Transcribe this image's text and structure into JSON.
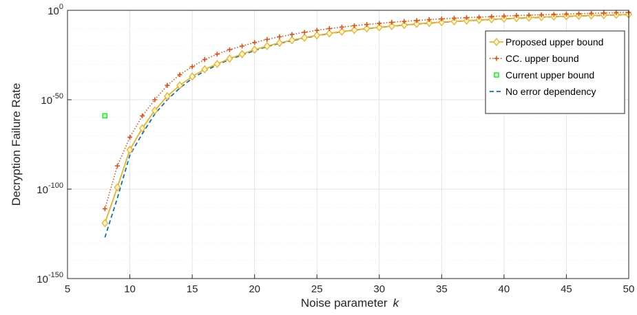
{
  "chart_data": {
    "type": "line",
    "xlabel": "Noise parameter",
    "xlabel_var": "k",
    "ylabel": "Decryption Failure Rate",
    "xlim": [
      5,
      50
    ],
    "ylim_log10": [
      -150,
      0
    ],
    "y_scale": "log",
    "grid": true,
    "legend_position": "top-right",
    "x_ticks": [
      "5",
      "10",
      "15",
      "20",
      "25",
      "30",
      "35",
      "40",
      "45",
      "50"
    ],
    "y_ticks": [
      {
        "base": "10",
        "exp": "0",
        "log10": 0
      },
      {
        "base": "10",
        "exp": "-50",
        "log10": -50
      },
      {
        "base": "10",
        "exp": "-100",
        "log10": -100
      },
      {
        "base": "10",
        "exp": "-150",
        "log10": -150
      }
    ],
    "series": [
      {
        "name": "Proposed upper bound",
        "color": "#EDB120",
        "style": "solid",
        "marker": "diamond",
        "x": [
          8,
          9,
          10,
          11,
          12,
          13,
          14,
          15,
          16,
          17,
          18,
          19,
          20,
          21,
          22,
          23,
          24,
          25,
          26,
          27,
          28,
          29,
          30,
          31,
          32,
          33,
          34,
          35,
          36,
          37,
          38,
          39,
          40,
          41,
          42,
          43,
          44,
          45,
          46,
          47,
          48,
          49,
          50
        ],
        "log10_y": [
          -119,
          -99,
          -78,
          -66,
          -56,
          -48,
          -42,
          -37,
          -33,
          -30,
          -27,
          -24.5,
          -22,
          -20,
          -18.2,
          -16.7,
          -15.3,
          -14,
          -12.9,
          -11.9,
          -11,
          -10.2,
          -9.5,
          -8.8,
          -8.2,
          -7.6,
          -7.1,
          -6.6,
          -6.2,
          -5.8,
          -5.4,
          -5,
          -4.7,
          -4.4,
          -4.1,
          -3.8,
          -3.5,
          -3.3,
          -3.1,
          -2.9,
          -2.7,
          -2.5,
          -2.3
        ]
      },
      {
        "name": "CC. upper bound",
        "color": "#D95319",
        "style": "dotted",
        "marker": "plus",
        "x": [
          8,
          9,
          10,
          11,
          12,
          13,
          14,
          15,
          16,
          17,
          18,
          19,
          20,
          21,
          22,
          23,
          24,
          25,
          26,
          27,
          28,
          29,
          30,
          31,
          32,
          33,
          34,
          35,
          36,
          37,
          38,
          39,
          40,
          41,
          42,
          43,
          44,
          45,
          46,
          47,
          48,
          49,
          50
        ],
        "log10_y": [
          -111,
          -87,
          -71,
          -59,
          -50,
          -42,
          -36,
          -31.5,
          -27.5,
          -24.5,
          -22,
          -20,
          -18,
          -16.3,
          -14.8,
          -13.5,
          -12.3,
          -11.2,
          -10.2,
          -9.4,
          -8.6,
          -7.9,
          -7.3,
          -6.7,
          -6.2,
          -5.7,
          -5.2,
          -4.8,
          -4.4,
          -4.1,
          -3.8,
          -3.5,
          -3.2,
          -2.9,
          -2.7,
          -2.5,
          -2.3,
          -2.1,
          -1.9,
          -1.7,
          -1.5,
          -1.3,
          -1.2
        ]
      },
      {
        "name": "Current upper bound",
        "color": "#00FF00",
        "style": "none",
        "marker": "square",
        "x": [
          8
        ],
        "log10_y": [
          -59
        ]
      },
      {
        "name": "No error dependency",
        "color": "#0072BD",
        "style": "dashed",
        "marker": "none",
        "x": [
          8,
          9,
          10,
          11,
          12,
          13,
          14,
          15,
          16,
          17,
          18,
          19,
          20,
          21,
          22,
          23,
          24,
          25,
          26,
          27,
          28,
          29,
          30,
          31,
          32,
          33,
          34,
          35,
          36,
          37,
          38,
          39,
          40,
          41,
          42,
          43,
          44,
          45,
          46,
          47,
          48,
          49,
          50
        ],
        "log10_y": [
          -127,
          -105,
          -81,
          -69,
          -58,
          -50,
          -43.5,
          -38,
          -34,
          -30.5,
          -27.5,
          -25,
          -22.5,
          -20.3,
          -18.5,
          -17,
          -15.5,
          -14.2,
          -13,
          -12,
          -11.1,
          -10.3,
          -9.6,
          -8.9,
          -8.3,
          -7.7,
          -7.2,
          -6.7,
          -6.3,
          -5.9,
          -5.5,
          -5.1,
          -4.8,
          -4.5,
          -4.2,
          -3.9,
          -3.6,
          -3.4,
          -3.2,
          -3,
          -2.8,
          -2.6,
          -2.4
        ]
      }
    ]
  }
}
